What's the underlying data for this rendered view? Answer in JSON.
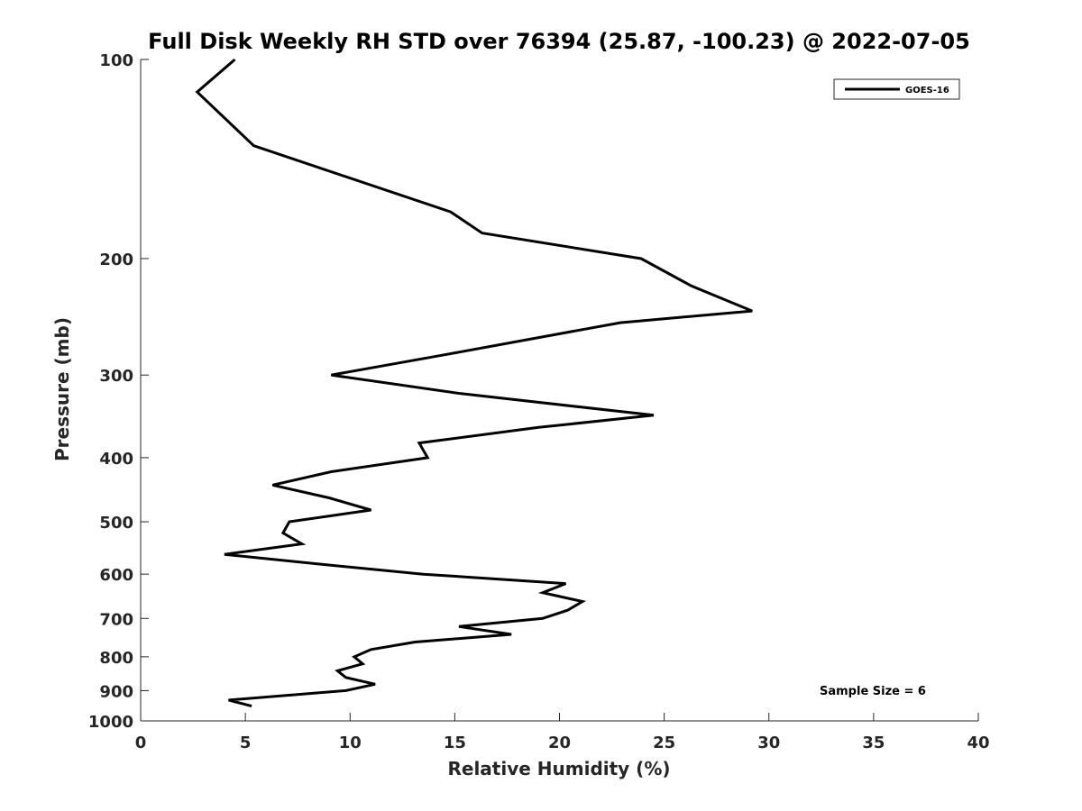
{
  "chart_data": {
    "type": "line",
    "title": "Full Disk Weekly RH STD over 76394 (25.87, -100.23) @ 2022-07-05",
    "xlabel": "Relative Humidity (%)",
    "ylabel": "Pressure (mb)",
    "xlim": [
      0,
      40
    ],
    "ylim": [
      1000,
      100
    ],
    "y_scale": "log",
    "x_ticks": [
      0,
      5,
      10,
      15,
      20,
      25,
      30,
      35,
      40
    ],
    "x_tick_labels": [
      "0",
      "5",
      "10",
      "15",
      "20",
      "25",
      "30",
      "35",
      "40"
    ],
    "y_ticks": [
      100,
      200,
      300,
      400,
      500,
      600,
      700,
      800,
      900,
      1000
    ],
    "y_tick_labels": [
      "100",
      "200",
      "300",
      "400",
      "500",
      "600",
      "700",
      "800",
      "900",
      "1000"
    ],
    "grid": false,
    "legend_position": "top-right",
    "annotation": "Sample Size = 6",
    "series": [
      {
        "name": "GOES-16",
        "color": "#000000",
        "x": [
          4.5,
          2.7,
          5.4,
          14.8,
          16.3,
          23.9,
          26.3,
          29.2,
          22.9,
          14.4,
          9.1,
          15.3,
          24.5,
          19.0,
          13.3,
          13.7,
          9.1,
          6.3,
          9.0,
          11.0,
          7.1,
          6.8,
          7.7,
          4.0,
          8.7,
          13.5,
          20.3,
          19.2,
          21.1,
          20.4,
          19.2,
          15.2,
          17.7,
          13.1,
          11.0,
          10.2,
          10.6,
          9.4,
          9.8,
          11.2,
          9.8,
          4.2,
          5.3
        ],
        "y": [
          100,
          112,
          135,
          170,
          183,
          200,
          220,
          240,
          250,
          280,
          300,
          320,
          345,
          360,
          380,
          400,
          420,
          440,
          460,
          480,
          500,
          520,
          540,
          560,
          580,
          600,
          620,
          640,
          660,
          680,
          700,
          720,
          740,
          760,
          780,
          800,
          820,
          840,
          860,
          880,
          900,
          930,
          950
        ]
      }
    ]
  }
}
